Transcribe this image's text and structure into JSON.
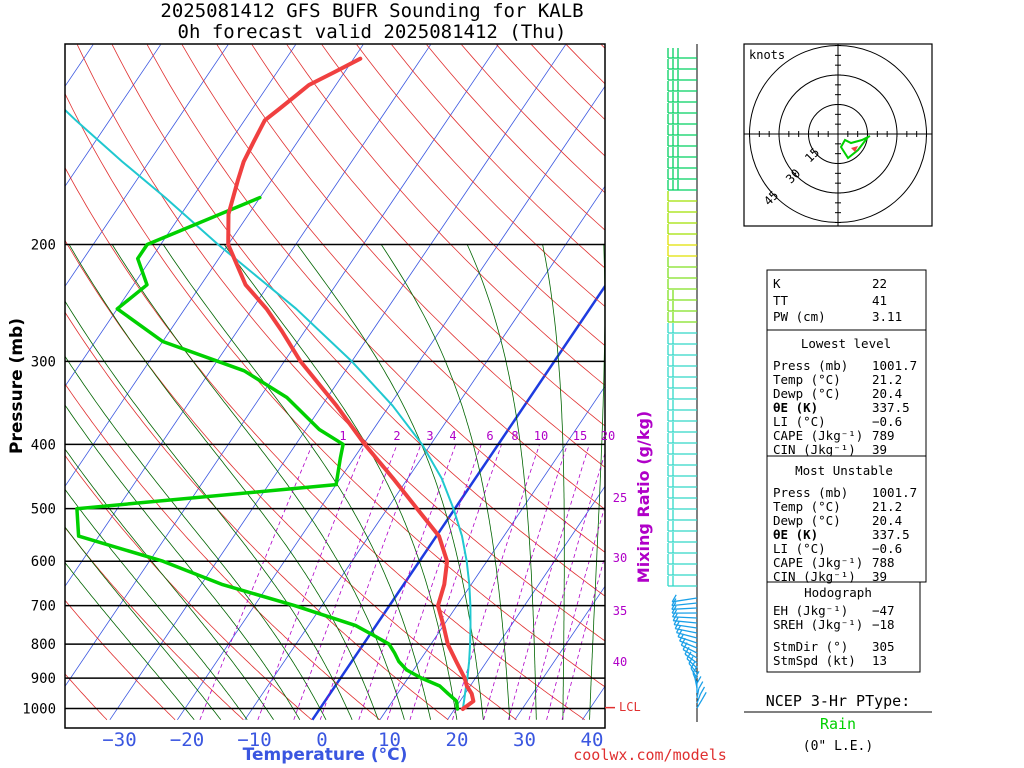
{
  "title": {
    "line1": "2025081412 GFS BUFR Sounding for KALB",
    "line2": "0h forecast valid 2025081412 (Thu)"
  },
  "credit": "coolwx.com/models",
  "colors": {
    "temperature": "#f04040",
    "dewpoint": "#00d000",
    "parcel": "#20c8d0",
    "isotherm": "#3a56e0",
    "dry_adiabat": "#e03030",
    "moist_adiabat": "#006400",
    "mixing_ratio": "#b000c8",
    "zero_isotherm": "#1e3ce0"
  },
  "chart_data": {
    "type": "line",
    "title": "2025081412 GFS BUFR Sounding for KALB",
    "subtitle": "0h forecast valid 2025081412 (Thu)",
    "xlabel": "Temperature (°C)",
    "ylabel": "Pressure (mb)",
    "x_ticks": [
      "−30",
      "−20",
      "−10",
      "0",
      "10",
      "20",
      "30",
      "40"
    ],
    "y_ticks": [
      "200",
      "300",
      "400",
      "500",
      "600",
      "700",
      "800",
      "900",
      "1000"
    ],
    "xlim": [
      -38,
      42
    ],
    "ylim": [
      1040,
      100
    ],
    "y_scale": "log",
    "skew": "skew-T",
    "grid": true,
    "lcl_label": "LCL",
    "lcl_pressure": 997,
    "mixing_ratio_label": "Mixing Ratio (g/kg)",
    "mixing_ratio_values": [
      "1",
      "2",
      "3",
      "4",
      "6",
      "8",
      "10",
      "15",
      "20",
      "25",
      "30",
      "35",
      "40"
    ],
    "series": [
      {
        "name": "Temperature",
        "pressure": [
          1001.7,
          975,
          950,
          925,
          900,
          850,
          800,
          750,
          700,
          650,
          600,
          550,
          500,
          450,
          400,
          350,
          300,
          270,
          250,
          230,
          200,
          180,
          160,
          150,
          140,
          130,
          125,
          120,
          115,
          110,
          105
        ],
        "values": [
          21.2,
          22.0,
          21.0,
          19.5,
          18.4,
          15.5,
          12.5,
          10.0,
          7.2,
          6.0,
          4.1,
          0.4,
          -5.6,
          -12.2,
          -19.8,
          -27.8,
          -37.6,
          -43.4,
          -47.9,
          -53.4,
          -60.0,
          -63.0,
          -65.0,
          -66.0,
          -66.5,
          -67.0,
          -66.0,
          -65.0,
          -64.0,
          -61.5,
          -59.0
        ]
      },
      {
        "name": "Dewpoint",
        "pressure": [
          1001.7,
          975,
          950,
          925,
          900,
          875,
          850,
          825,
          800,
          775,
          750,
          700,
          650,
          600,
          550,
          500,
          460,
          420,
          400,
          380,
          340,
          310,
          280,
          250,
          230,
          210,
          200,
          170
        ],
        "values": [
          20.4,
          19.5,
          17.5,
          15.5,
          12.0,
          9.0,
          7.0,
          5.5,
          3.8,
          0.5,
          -3.0,
          -14.0,
          -27.0,
          -38.0,
          -53.0,
          -56.0,
          -20.0,
          -22.0,
          -23.0,
          -28.0,
          -36.0,
          -45.0,
          -60.0,
          -70.0,
          -68.0,
          -72.0,
          -72.0,
          -60.0
        ]
      },
      {
        "name": "Parcel",
        "pressure": [
          1001.7,
          975,
          950,
          925,
          900,
          850,
          800,
          750,
          700,
          650,
          600,
          550,
          500,
          450,
          400,
          350,
          300,
          250,
          200,
          170,
          150,
          130,
          115
        ],
        "values": [
          21.2,
          20.6,
          20.0,
          19.4,
          18.8,
          17.4,
          15.8,
          14.0,
          12.0,
          9.7,
          7.0,
          3.8,
          -0.2,
          -5.0,
          -11.3,
          -19.5,
          -30.0,
          -43.5,
          -61.5,
          -74.0,
          -84.0,
          -95.0,
          -104.0
        ]
      }
    ]
  },
  "hodograph": {
    "units_label": "knots",
    "ring_labels": [
      "15",
      "30",
      "45"
    ]
  },
  "indices": {
    "rows": [
      {
        "label": "K",
        "value": "22"
      },
      {
        "label": "TT",
        "value": "41"
      },
      {
        "label": "PW (cm)",
        "value": "3.11"
      }
    ]
  },
  "lowest_level": {
    "heading": "Lowest level",
    "rows": [
      {
        "label": "Press (mb)",
        "value": "1001.7"
      },
      {
        "label": "Temp (°C)",
        "value": "21.2"
      },
      {
        "label": "Dewp (°C)",
        "value": "20.4"
      },
      {
        "label": "θE (K)",
        "value": "337.5"
      },
      {
        "label": "LI (°C)",
        "value": "−0.6"
      },
      {
        "label": "CAPE (Jkg⁻¹)",
        "value": "789"
      },
      {
        "label": "CIN (Jkg⁻¹)",
        "value": "39"
      }
    ]
  },
  "most_unstable": {
    "heading": "Most Unstable",
    "rows": [
      {
        "label": "Press (mb)",
        "value": "1001.7"
      },
      {
        "label": "Temp (°C)",
        "value": "21.2"
      },
      {
        "label": "Dewp (°C)",
        "value": "20.4"
      },
      {
        "label": "θE (K)",
        "value": "337.5"
      },
      {
        "label": "LI (°C)",
        "value": "−0.6"
      },
      {
        "label": "CAPE (Jkg⁻¹)",
        "value": "788"
      },
      {
        "label": "CIN (Jkg⁻¹)",
        "value": "39"
      }
    ]
  },
  "hodograph_params": {
    "heading": "Hodograph",
    "rows": [
      {
        "label": "EH (Jkg⁻¹)",
        "value": "−47"
      },
      {
        "label": "SREH (Jkg⁻¹)",
        "value": "−18"
      },
      {
        "label": "",
        "value": ""
      },
      {
        "label": "StmDir (°)",
        "value": "305"
      },
      {
        "label": "StmSpd (kt)",
        "value": "13"
      }
    ]
  },
  "ptype": {
    "heading": "NCEP 3-Hr PType:",
    "value": "Rain",
    "accum": "(0\" L.E.)"
  }
}
